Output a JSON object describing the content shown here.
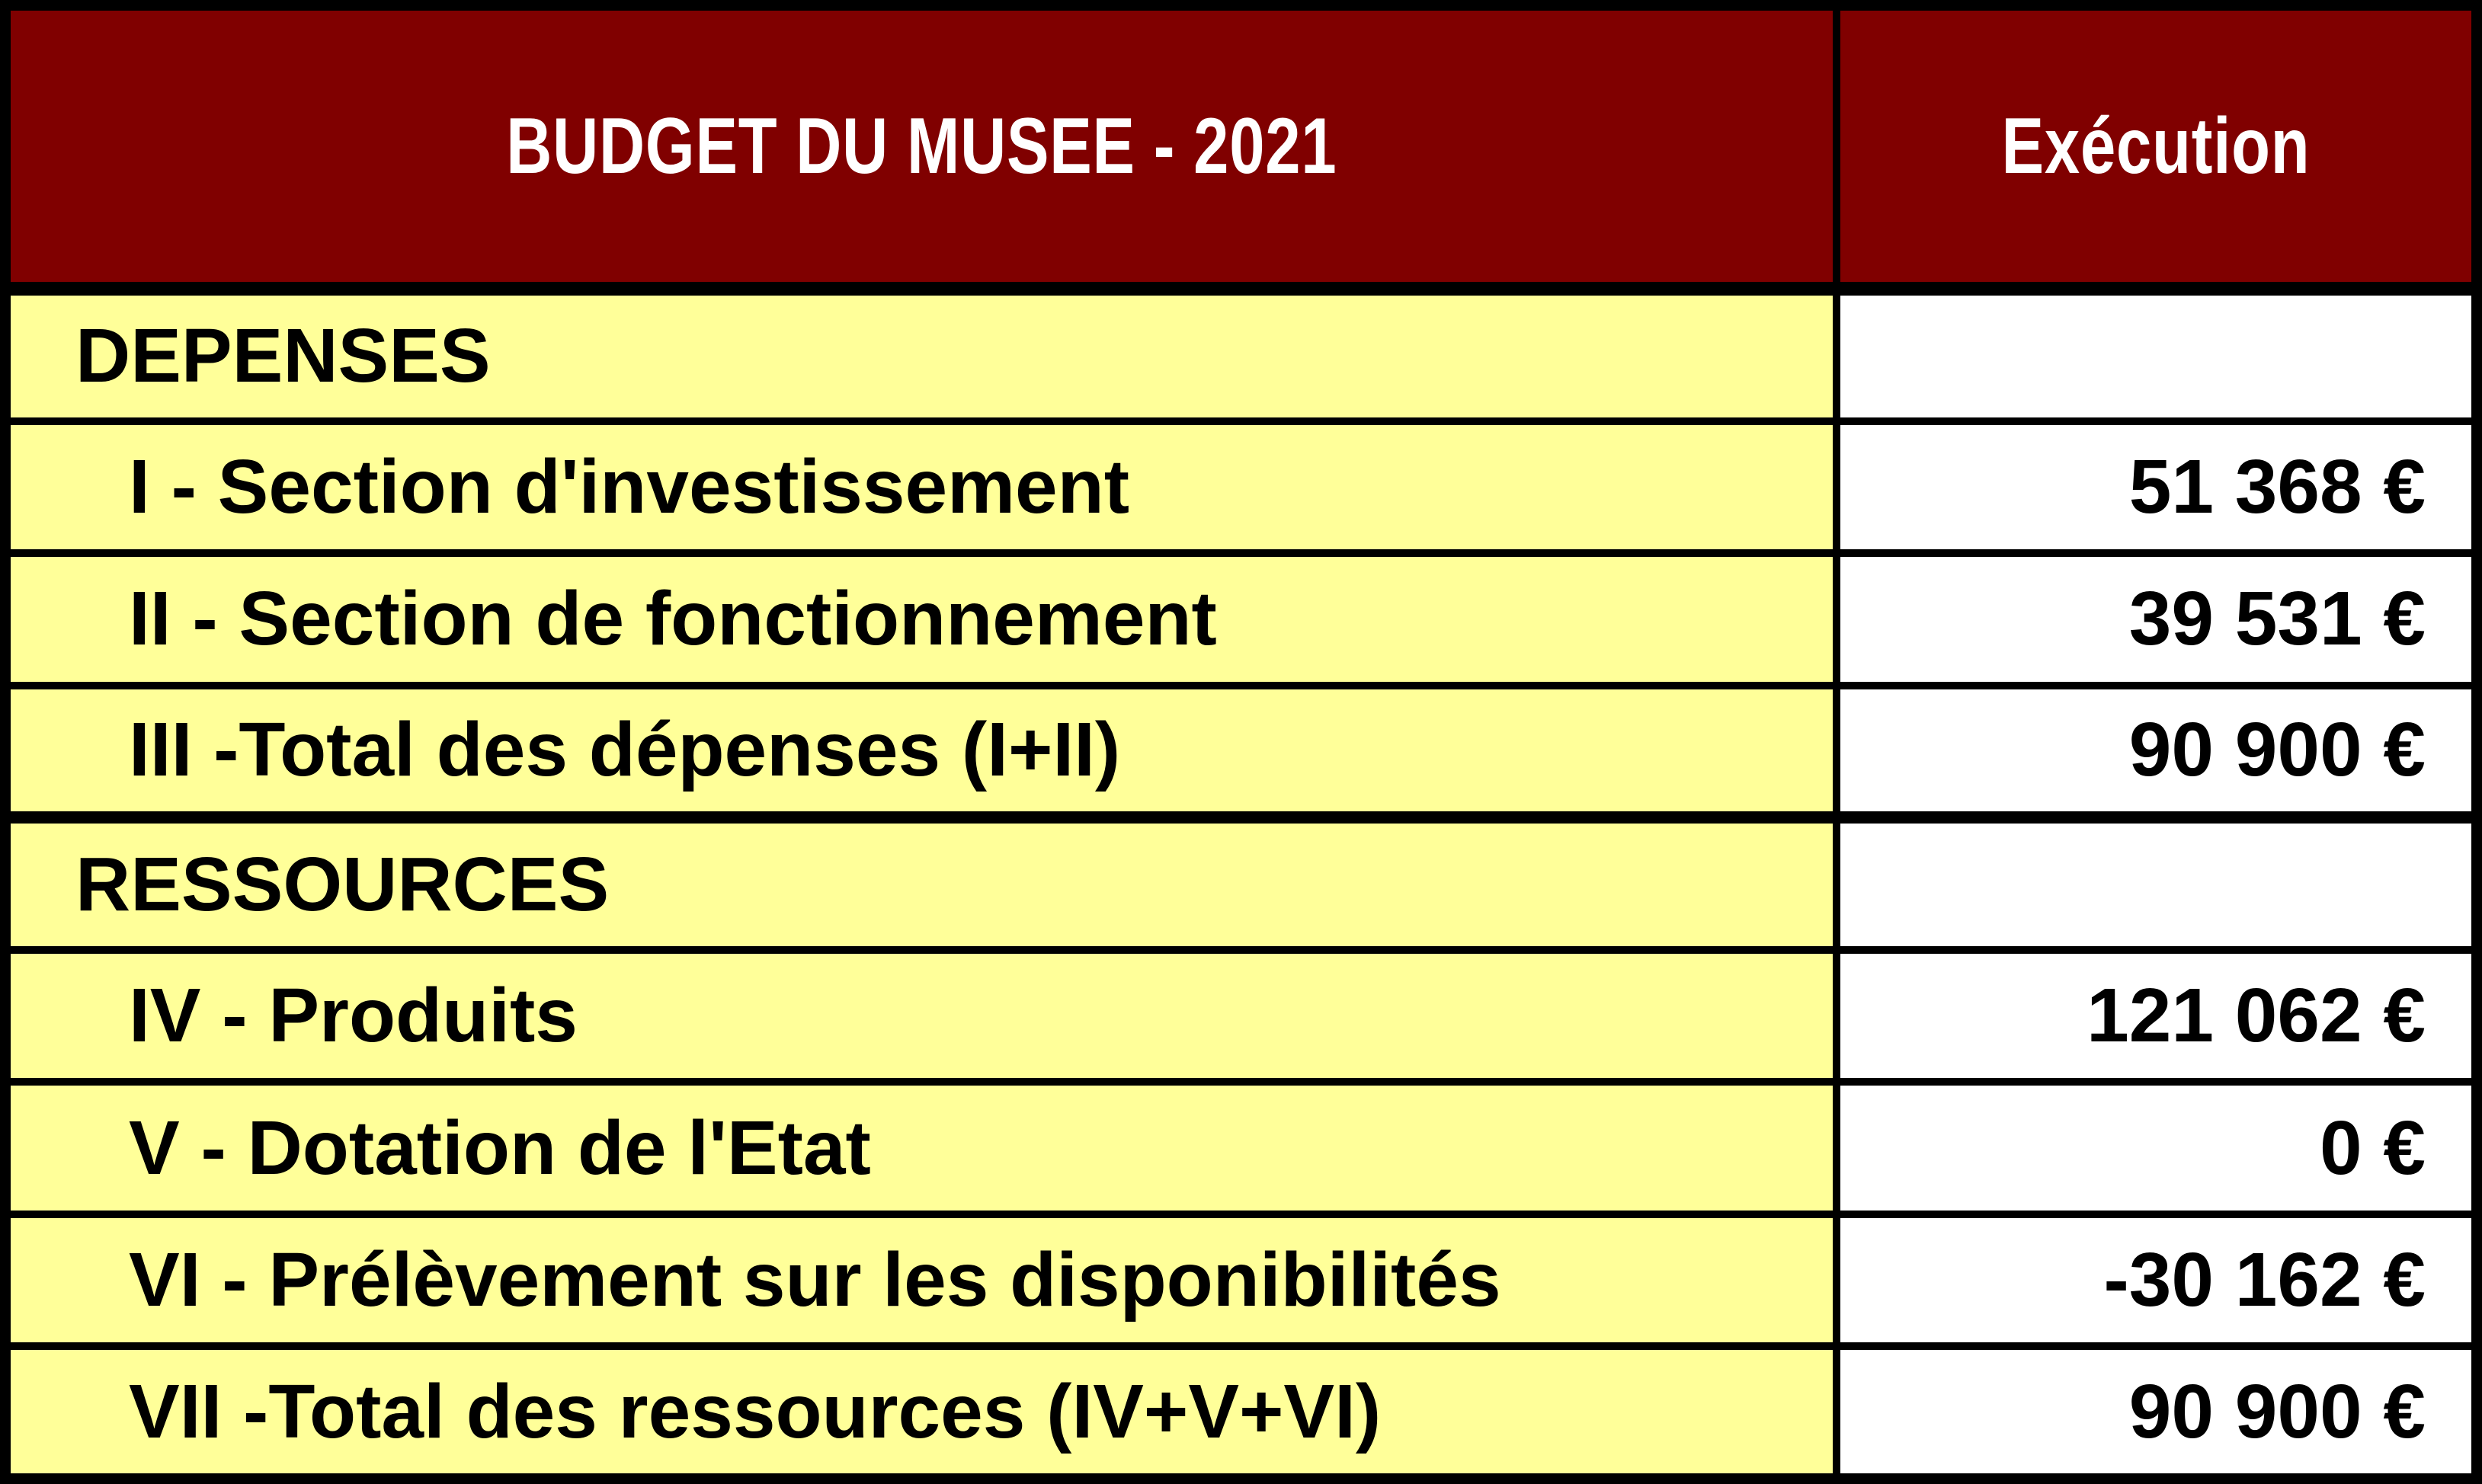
{
  "header": {
    "title": "BUDGET DU MUSEE - 2021",
    "execution_label": "Exécution"
  },
  "rows": [
    {
      "label": "DEPENSES",
      "value": "",
      "type": "section"
    },
    {
      "label": "I - Section d'investissement",
      "value": "51 368 €",
      "type": "item"
    },
    {
      "label": "II - Section de fonctionnement",
      "value": "39 531 €",
      "type": "item"
    },
    {
      "label": "III -Total des dépenses (I+II)",
      "value": "90 900 €",
      "type": "item"
    },
    {
      "label": "RESSOURCES",
      "value": "",
      "type": "section"
    },
    {
      "label": "IV - Produits",
      "value": "121 062 €",
      "type": "item"
    },
    {
      "label": "V - Dotation de l'Etat",
      "value": "0 €",
      "type": "item"
    },
    {
      "label": "VI - Prélèvement sur les disponibilités",
      "value": "-30 162 €",
      "type": "item"
    },
    {
      "label": "VII -Total des ressources (IV+V+VI)",
      "value": "90 900 €",
      "type": "item"
    }
  ],
  "colors": {
    "header_bg": "#800000",
    "header_text": "#FFFFFF",
    "label_bg": "#FFFF99",
    "value_bg": "#FFFFFF",
    "border": "#000000",
    "text": "#000000"
  }
}
